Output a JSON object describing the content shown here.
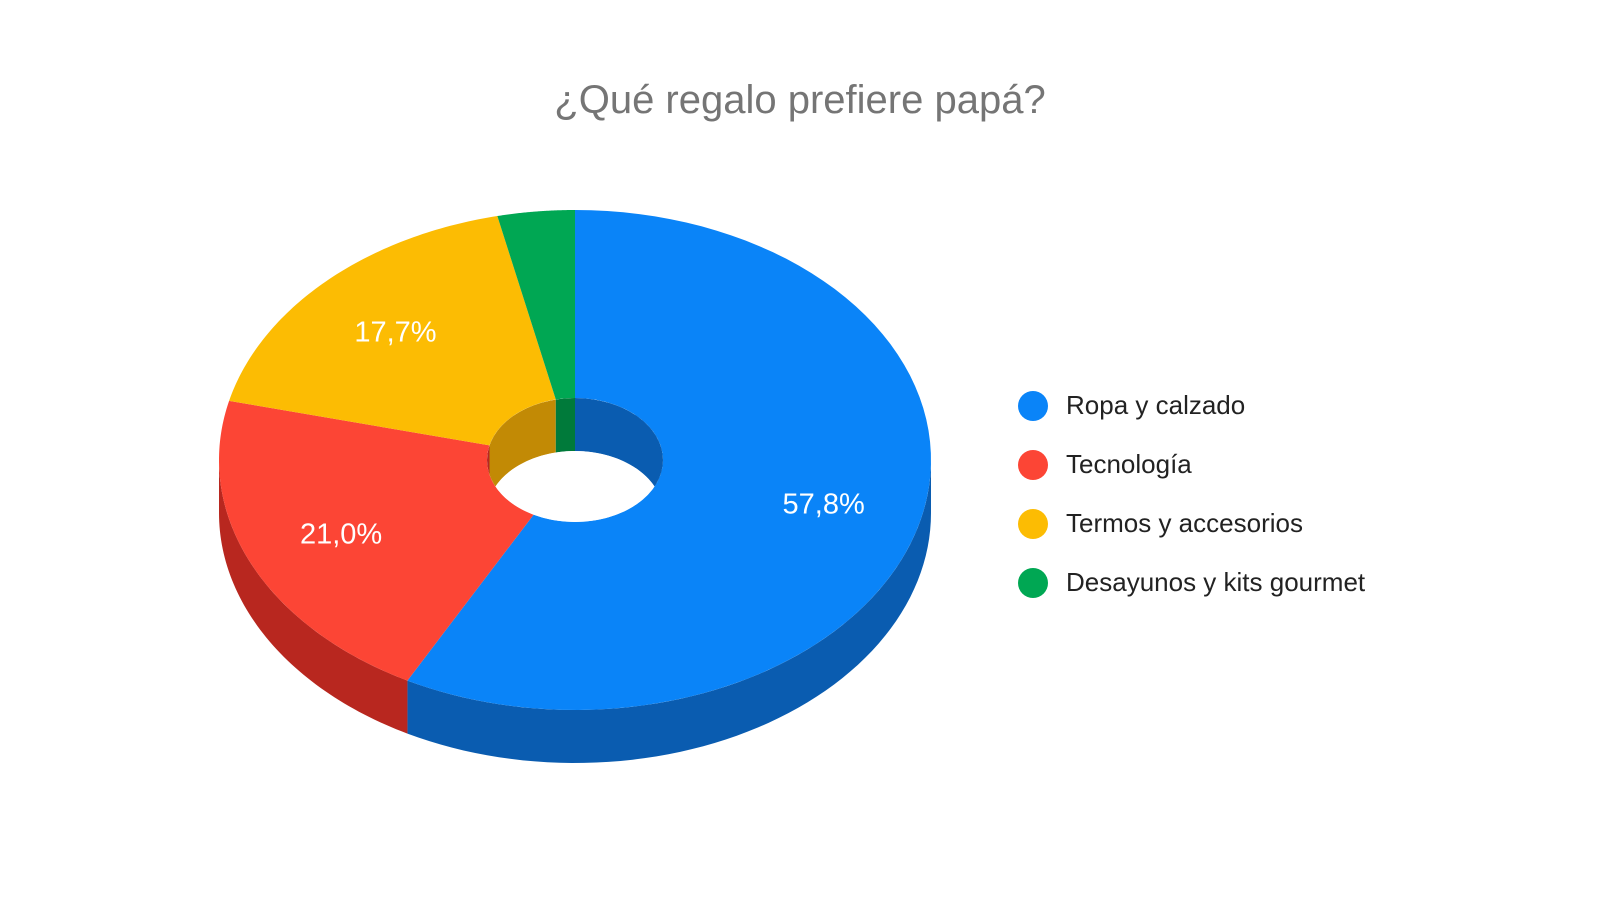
{
  "chart_data": {
    "type": "pie",
    "style": "3d-donut",
    "title": "¿Qué regalo prefiere papá?",
    "categories": [
      "Ropa y calzado",
      "Tecnología",
      "Termos y accesorios",
      "Desayunos y kits gourmet"
    ],
    "values": [
      57.8,
      21.0,
      17.7,
      3.5
    ],
    "data_labels": [
      "57,8%",
      "21,0%",
      "17,7%",
      ""
    ],
    "colors": [
      "#0a84f8",
      "#fc4535",
      "#fcbc03",
      "#00a753"
    ],
    "side_colors": [
      "#0a5cb0",
      "#b8271f",
      "#c28a05",
      "#007a3a"
    ],
    "legend": {
      "position": "right",
      "items": [
        "Ropa y calzado",
        "Tecnología",
        "Termos y accesorios",
        "Desayunos y kits gourmet"
      ]
    }
  }
}
